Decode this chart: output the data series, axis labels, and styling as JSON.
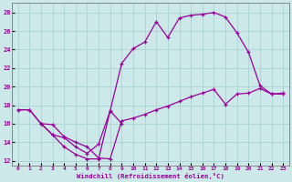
{
  "xlabel": "Windchill (Refroidissement éolien,°C)",
  "background_color": "#cce8e8",
  "line_color": "#990099",
  "xlim": [
    -0.5,
    23.5
  ],
  "ylim": [
    11.5,
    29.0
  ],
  "xticks": [
    0,
    1,
    2,
    3,
    4,
    5,
    6,
    7,
    8,
    9,
    10,
    11,
    12,
    13,
    14,
    15,
    16,
    17,
    18,
    19,
    20,
    21,
    22,
    23
  ],
  "yticks": [
    12,
    14,
    16,
    18,
    20,
    22,
    24,
    26,
    28
  ],
  "curve1_x": [
    0,
    1,
    2,
    3,
    4,
    5,
    6,
    7,
    8,
    9,
    10,
    11,
    12,
    13,
    14,
    15,
    16,
    17,
    18,
    19,
    20,
    21,
    22,
    23
  ],
  "curve1_y": [
    17.5,
    17.5,
    16.0,
    15.9,
    14.6,
    14.0,
    13.5,
    12.3,
    12.2,
    16.3,
    16.6,
    17.0,
    17.5,
    17.9,
    18.4,
    18.9,
    19.3,
    19.7,
    18.1,
    19.2,
    19.3,
    19.8,
    19.2,
    19.3
  ],
  "curve2_x": [
    0,
    1,
    2,
    3,
    4,
    5,
    6,
    7,
    8,
    9,
    10,
    11,
    12,
    13,
    14,
    15,
    16,
    17,
    18,
    19,
    20,
    21,
    22,
    23
  ],
  "curve2_y": [
    17.5,
    17.5,
    16.0,
    14.8,
    13.5,
    12.7,
    12.2,
    12.2,
    17.4,
    22.5,
    24.1,
    24.8,
    27.0,
    25.3,
    27.4,
    27.7,
    27.8,
    28.0,
    27.5,
    25.8,
    23.7,
    20.1,
    19.2,
    19.2
  ],
  "curve3_x": [
    2,
    3,
    4,
    5,
    6,
    7,
    8,
    9
  ],
  "curve3_y": [
    16.0,
    14.8,
    14.5,
    13.5,
    12.8,
    13.8,
    17.4,
    16.0
  ],
  "grid_color": "#a8d4d4"
}
